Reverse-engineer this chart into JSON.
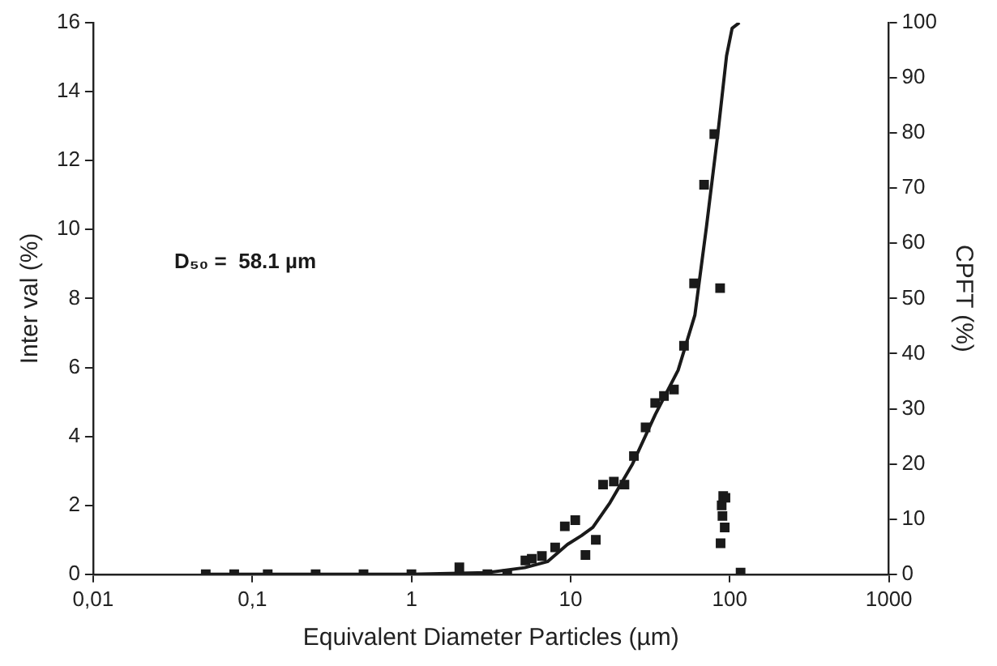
{
  "chart_data": {
    "type": "scatter",
    "xlabel": "Equivalent Diameter Particles (µm)",
    "ylabel": "Inter val (%)",
    "y2label": "CPFT (%)",
    "log": "x",
    "grid": false,
    "legend": false,
    "marker": "square",
    "xlim": [
      0.01,
      1000
    ],
    "xticks": [
      {
        "value": 0.01,
        "label": "0,01"
      },
      {
        "value": 0.1,
        "label": "0,1"
      },
      1,
      10,
      100,
      1000
    ],
    "ylim": [
      0,
      16
    ],
    "yticks": [
      0,
      2,
      4,
      6,
      8,
      10,
      12,
      14,
      16
    ],
    "y2lim": [
      0,
      100
    ],
    "y2ticks": [
      0,
      10,
      20,
      30,
      40,
      50,
      60,
      70,
      80,
      90,
      100
    ],
    "annotations": [
      "D₅₀ =  58.1 µm"
    ],
    "series": [
      {
        "color": "#1a1a1a",
        "x": [
          0.051,
          0.077,
          0.125,
          0.25,
          0.5,
          1,
          2,
          3,
          4,
          5.2,
          5.7,
          6.6,
          8,
          9.2,
          10.7,
          12.4,
          14.4,
          16,
          18.7,
          21.8,
          25,
          29.6,
          34,
          38.6,
          44.6,
          51.6,
          59.7,
          69,
          80,
          87,
          87.6,
          89,
          90,
          91,
          93,
          94,
          117
        ],
        "values": [
          0,
          0,
          0,
          0,
          0,
          0,
          0.2,
          0,
          0,
          0.4,
          0.45,
          0.53,
          0.78,
          1.39,
          1.57,
          0.56,
          1.0,
          2.6,
          2.69,
          2.6,
          3.43,
          4.26,
          4.97,
          5.17,
          5.36,
          6.63,
          8.44,
          11.3,
          12.77,
          8.3,
          0.9,
          2.0,
          1.69,
          2.27,
          1.36,
          2.22,
          0.05
        ]
      },
      {
        "type": "line",
        "axis": "y2",
        "color": "#1a1a1a",
        "marker": "none",
        "line_style": "solid",
        "x": [
          0.05,
          1,
          3,
          5.15,
          7.16,
          9.55,
          11.7,
          13.8,
          17.7,
          24.5,
          34.1,
          47.4,
          60.4,
          71.4,
          84.3,
          95.5,
          103.5,
          115
        ],
        "values": [
          0,
          0,
          0.3,
          1.2,
          2.3,
          5.4,
          7,
          8.5,
          13,
          20,
          29,
          37,
          47,
          63,
          80,
          94,
          99,
          100
        ]
      }
    ]
  }
}
